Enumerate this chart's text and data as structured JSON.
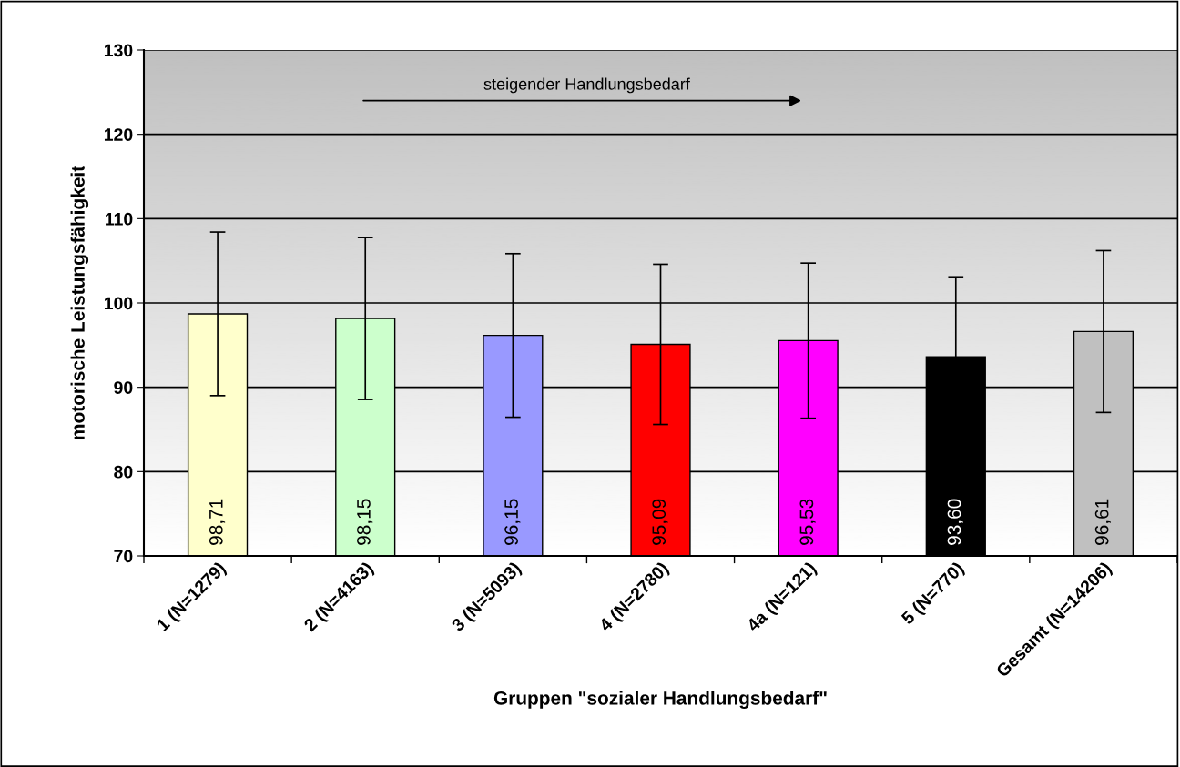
{
  "chart_data": {
    "type": "bar",
    "xlabel": "Gruppen \"sozialer Handlungsbedarf\"",
    "ylabel": "motorische Leistungsfähigkeit",
    "categories": [
      "1 (N=1279)",
      "2 (N=4163)",
      "3 (N=5093)",
      "4 (N=2780)",
      "4a (N=121)",
      "5 (N=770)",
      "Gesamt (N=14206)"
    ],
    "values": [
      98.71,
      98.15,
      96.15,
      95.09,
      95.53,
      93.6,
      96.61
    ],
    "colors": [
      "#ffffcc",
      "#ccffcc",
      "#9999ff",
      "#ff0000",
      "#ff00ff",
      "#000000",
      "#c0c0c0"
    ],
    "errors": [
      9.7,
      9.6,
      9.7,
      9.5,
      9.2,
      9.5,
      9.6
    ],
    "value_labels": [
      "98,71",
      "98,15",
      "96,15",
      "95,09",
      "95,53",
      "93,60",
      "96,61"
    ],
    "ylim": [
      70,
      130
    ],
    "yticks": [
      70,
      80,
      90,
      100,
      110,
      120,
      130
    ],
    "grid": "y",
    "annotations": [
      "steigender Handlungsbedarf"
    ]
  }
}
